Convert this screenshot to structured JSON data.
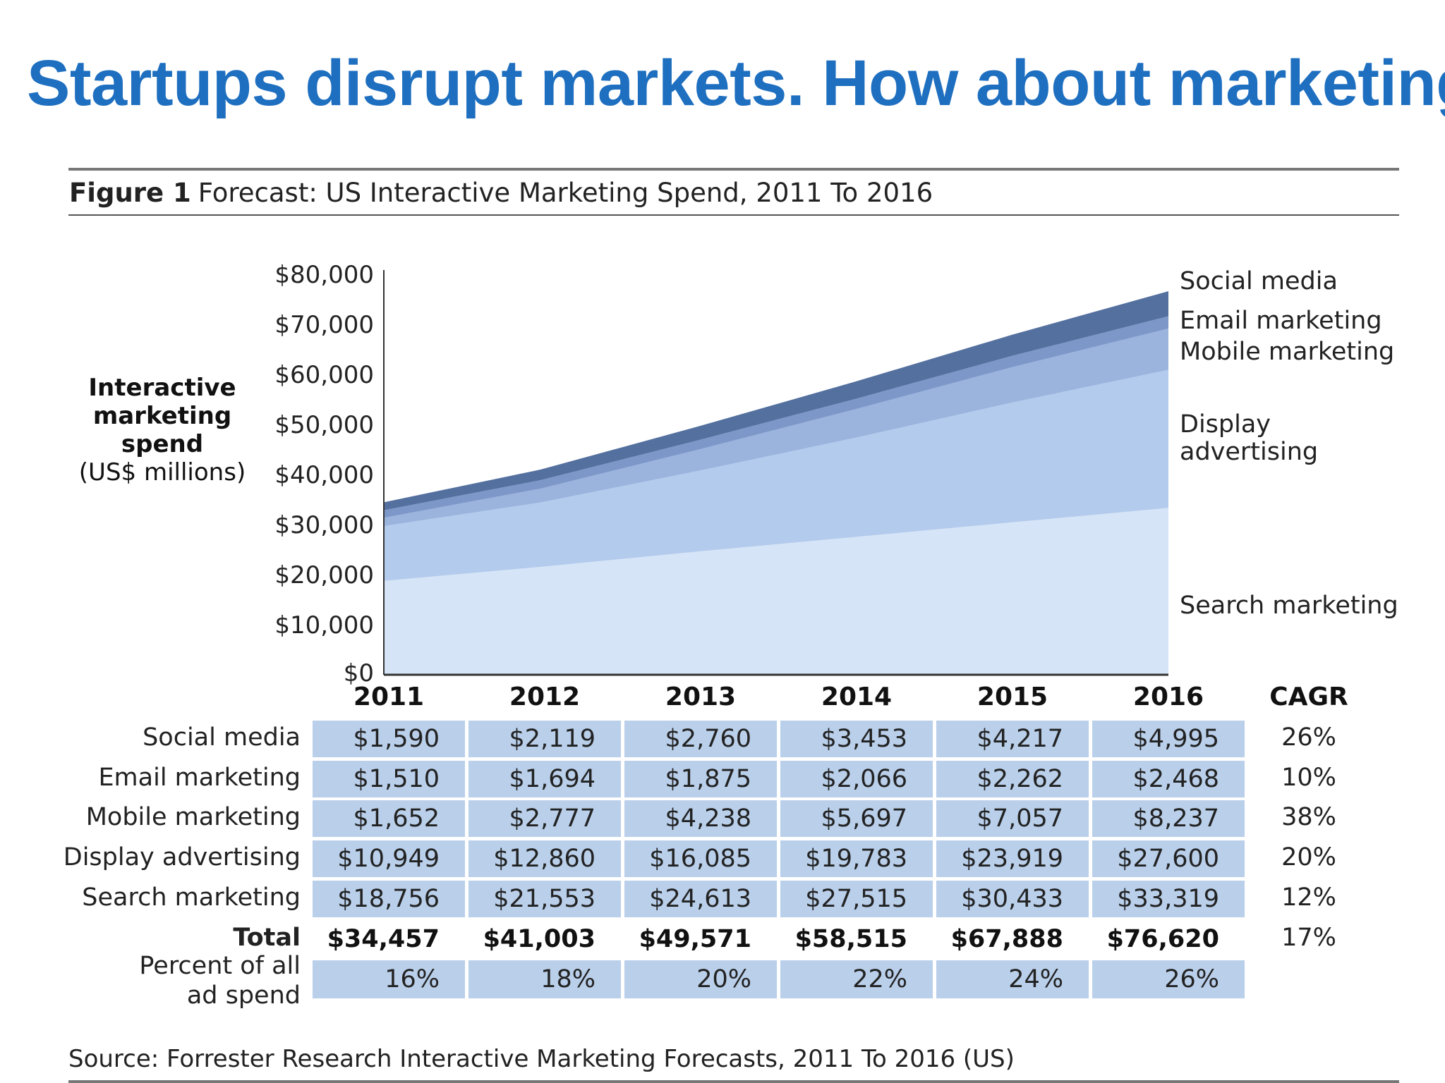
{
  "slide": {
    "title": "Startups disrupt markets. How about marketing?"
  },
  "figure": {
    "label": "Figure 1",
    "title": "Forecast: US Interactive Marketing Spend, 2011 To 2016",
    "source": "Source: Forrester Research Interactive Marketing Forecasts, 2011 To 2016 (US)"
  },
  "colors": {
    "title_blue": "#1e6fc0",
    "search": "#d6e4f7",
    "display": "#b3cbec",
    "mobile": "#9ab4de",
    "email": "#7d97c9",
    "social": "#54709f",
    "table_cell": "#b9cfea"
  },
  "chart_data": {
    "type": "area",
    "stacked": true,
    "x": [
      "2011",
      "2012",
      "2013",
      "2014",
      "2015",
      "2016"
    ],
    "ylabel_bold": "Interactive marketing spend",
    "ylabel_unit": "(US$ millions)",
    "ylim": [
      0,
      80000
    ],
    "yticks": [
      {
        "value": 0,
        "label": "$0"
      },
      {
        "value": 10000,
        "label": "$10,000"
      },
      {
        "value": 20000,
        "label": "$20,000"
      },
      {
        "value": 30000,
        "label": "$30,000"
      },
      {
        "value": 40000,
        "label": "$40,000"
      },
      {
        "value": 50000,
        "label": "$50,000"
      },
      {
        "value": 60000,
        "label": "$60,000"
      },
      {
        "value": 70000,
        "label": "$70,000"
      },
      {
        "value": 80000,
        "label": "$80,000"
      }
    ],
    "series": [
      {
        "name": "Search marketing",
        "values": [
          18756,
          21553,
          24613,
          27515,
          30433,
          33319
        ]
      },
      {
        "name": "Display advertising",
        "values": [
          10949,
          12860,
          16085,
          19783,
          23919,
          27600
        ]
      },
      {
        "name": "Mobile marketing",
        "values": [
          1652,
          2777,
          4238,
          5697,
          7057,
          8237
        ]
      },
      {
        "name": "Email marketing",
        "values": [
          1510,
          1694,
          1875,
          2066,
          2262,
          2468
        ]
      },
      {
        "name": "Social media",
        "values": [
          1590,
          2119,
          2760,
          3453,
          4217,
          4995
        ]
      }
    ],
    "series_labels": {
      "social": "Social media",
      "email": "Email marketing",
      "mobile": "Mobile marketing",
      "display_line1": "Display",
      "display_line2": "advertising",
      "search": "Search marketing"
    }
  },
  "table": {
    "cagr_header": "CAGR",
    "rows": [
      {
        "label": "Social media",
        "values": [
          "$1,590",
          "$2,119",
          "$2,760",
          "$3,453",
          "$4,217",
          "$4,995"
        ],
        "cagr": "26%"
      },
      {
        "label": "Email marketing",
        "values": [
          "$1,510",
          "$1,694",
          "$1,875",
          "$2,066",
          "$2,262",
          "$2,468"
        ],
        "cagr": "10%"
      },
      {
        "label": "Mobile marketing",
        "values": [
          "$1,652",
          "$2,777",
          "$4,238",
          "$5,697",
          "$7,057",
          "$8,237"
        ],
        "cagr": "38%"
      },
      {
        "label": "Display advertising",
        "values": [
          "$10,949",
          "$12,860",
          "$16,085",
          "$19,783",
          "$23,919",
          "$27,600"
        ],
        "cagr": "20%"
      },
      {
        "label": "Search marketing",
        "values": [
          "$18,756",
          "$21,553",
          "$24,613",
          "$27,515",
          "$30,433",
          "$33,319"
        ],
        "cagr": "12%"
      }
    ],
    "total": {
      "label": "Total",
      "values": [
        "$34,457",
        "$41,003",
        "$49,571",
        "$58,515",
        "$67,888",
        "$76,620"
      ],
      "cagr": "17%"
    },
    "percent": {
      "label_line1": "Percent of all",
      "label_line2": "ad spend",
      "values": [
        "16%",
        "18%",
        "20%",
        "22%",
        "24%",
        "26%"
      ]
    }
  }
}
